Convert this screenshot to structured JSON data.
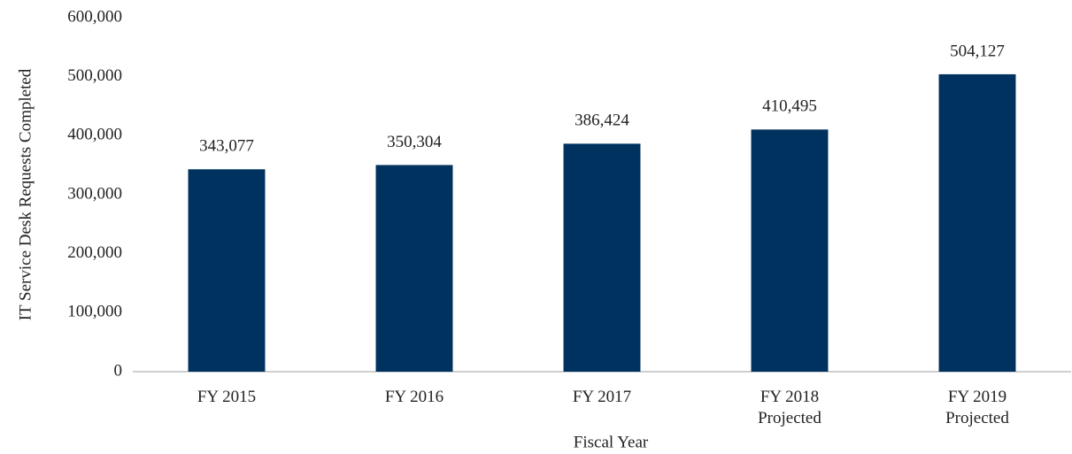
{
  "chart_data": {
    "type": "bar",
    "x_label": "Fiscal Year",
    "y_label": "IT Service Desk Requests Completed",
    "categories": [
      "FY 2015",
      "FY 2016",
      "FY 2017",
      "FY 2018 Projected",
      "FY 2019 Projected"
    ],
    "values": [
      343077,
      350304,
      386424,
      410495,
      504127
    ],
    "value_labels": [
      "343,077",
      "350,304",
      "386,424",
      "410,495",
      "504,127"
    ],
    "color": "#00325f",
    "ylim": [
      0,
      600000
    ],
    "yticks": [
      0,
      {
        "value": 100000,
        "label": "100,000"
      },
      {
        "value": 200000,
        "label": "200,000"
      },
      {
        "value": 300000,
        "label": "300,000"
      },
      {
        "value": 400000,
        "label": "400,000"
      },
      {
        "value": 500000,
        "label": "500,000"
      },
      {
        "value": 600000,
        "label": "600,000"
      }
    ],
    "grid": false
  }
}
